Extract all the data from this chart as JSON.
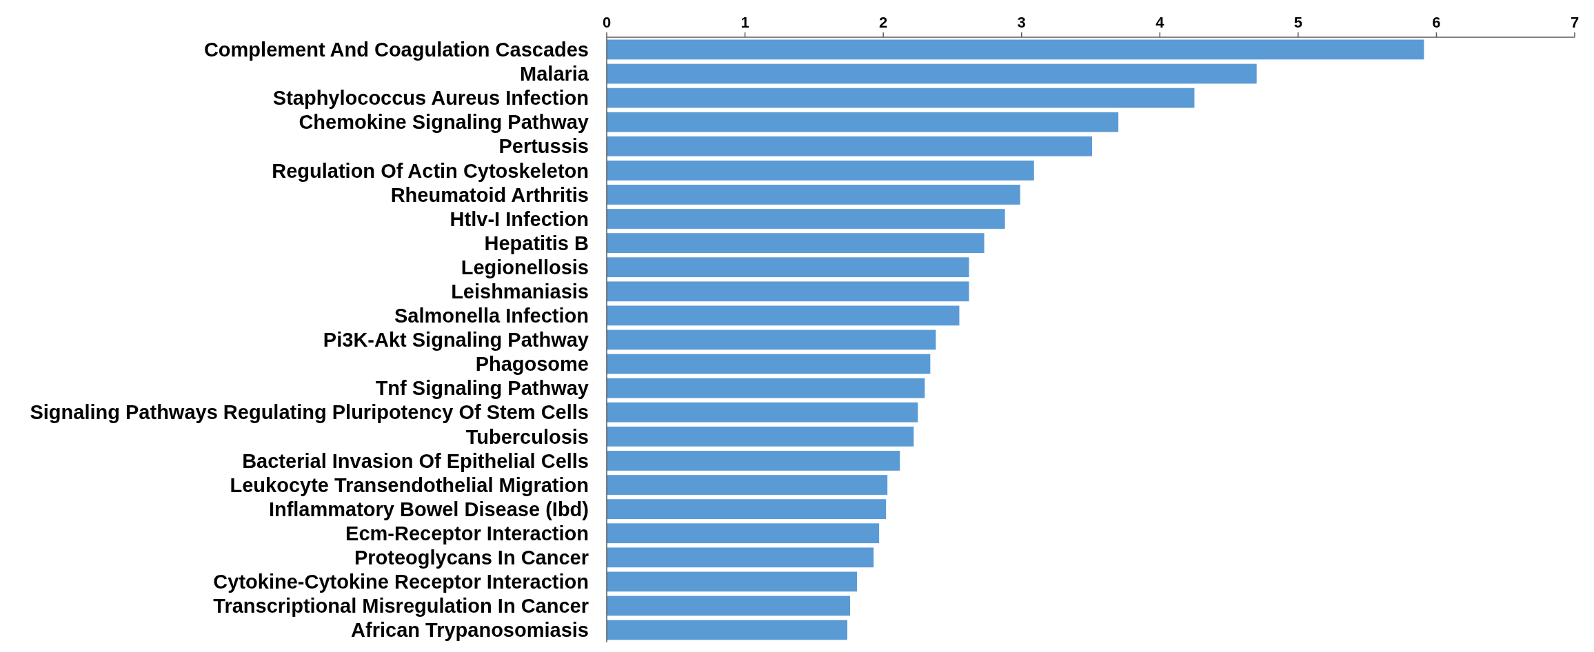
{
  "chart_data": {
    "type": "bar",
    "orientation": "horizontal",
    "color": "#5b9bd5",
    "categories": [
      "Complement And Coagulation Cascades",
      "Malaria",
      "Staphylococcus Aureus Infection",
      "Chemokine Signaling Pathway",
      "Pertussis",
      "Regulation Of Actin Cytoskeleton",
      "Rheumatoid Arthritis",
      "Htlv-I Infection",
      "Hepatitis B",
      "Legionellosis",
      "Leishmaniasis",
      "Salmonella Infection",
      "Pi3K-Akt Signaling Pathway",
      "Phagosome",
      "Tnf Signaling Pathway",
      "Signaling Pathways Regulating Pluripotency Of Stem Cells",
      "Tuberculosis",
      "Bacterial Invasion Of Epithelial Cells",
      "Leukocyte Transendothelial Migration",
      "Inflammatory Bowel Disease (Ibd)",
      "Ecm-Receptor Interaction",
      "Proteoglycans In Cancer",
      "Cytokine-Cytokine Receptor Interaction",
      "Transcriptional Misregulation In Cancer",
      "African Trypanosomiasis"
    ],
    "values": [
      5.91,
      4.7,
      4.25,
      3.7,
      3.51,
      3.09,
      2.99,
      2.88,
      2.73,
      2.62,
      2.62,
      2.55,
      2.38,
      2.34,
      2.3,
      2.25,
      2.22,
      2.12,
      2.03,
      2.02,
      1.97,
      1.93,
      1.81,
      1.76,
      1.74
    ],
    "xlim": [
      0,
      7
    ],
    "xticks": [
      0,
      1,
      2,
      3,
      4,
      5,
      6,
      7
    ],
    "grid": false
  }
}
